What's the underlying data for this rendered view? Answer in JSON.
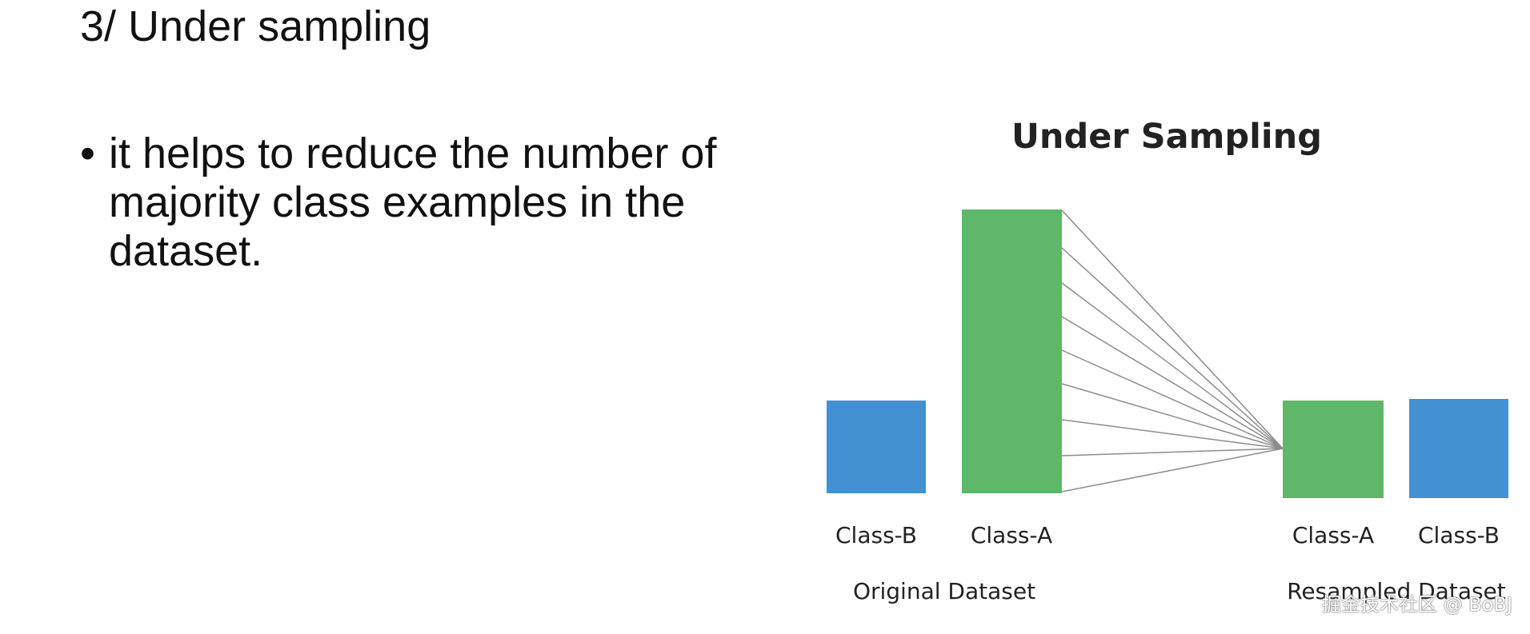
{
  "slide": {
    "title": "3/ Under sampling",
    "bullet_symbol": "•",
    "bullet_text": "it helps to reduce the number of majority class examples in the dataset."
  },
  "diagram": {
    "title": "Under Sampling",
    "original": {
      "caption": "Original Dataset",
      "bars": [
        {
          "label": "Class-B",
          "color": "#4390d3"
        },
        {
          "label": "Class-A",
          "color": "#5fb869"
        }
      ]
    },
    "resampled": {
      "caption": "Resampled Dataset",
      "bars": [
        {
          "label": "Class-A",
          "color": "#5fb869"
        },
        {
          "label": "Class-B",
          "color": "#4390d3"
        }
      ]
    },
    "line_color": "#8c8c8c"
  },
  "watermark": "掘金技术社区 @ BoBJ"
}
